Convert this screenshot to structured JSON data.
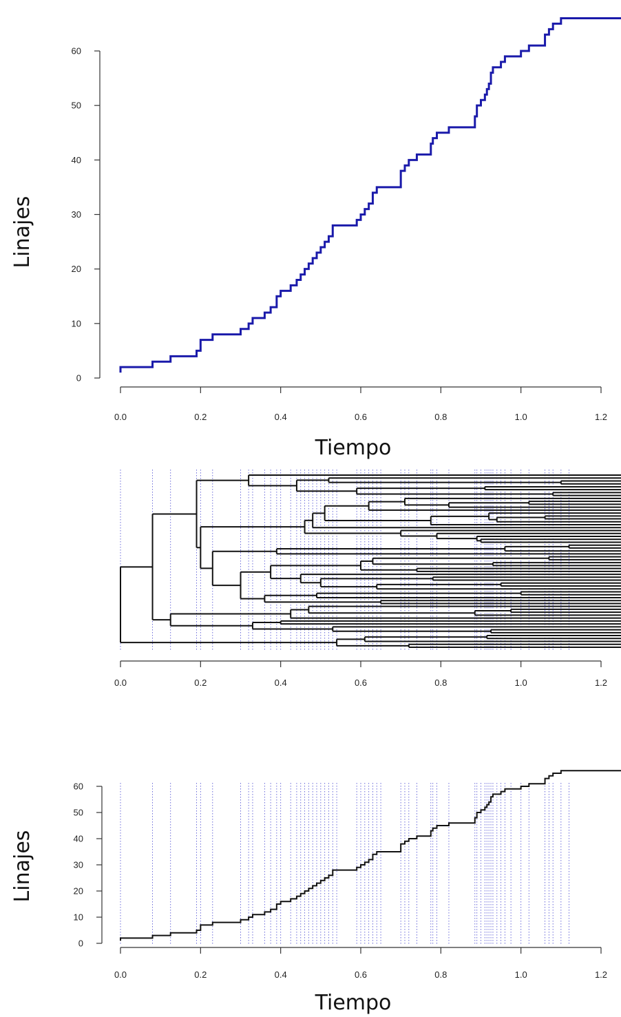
{
  "chart_data": [
    {
      "type": "line",
      "step": true,
      "color": "#1a1aaa",
      "xlabel": "Tiempo",
      "ylabel": "Linajes",
      "xlim": [
        0,
        1.2
      ],
      "ylim": [
        0,
        66
      ],
      "x_ticks": [
        "0.0",
        "0.2",
        "0.4",
        "0.6",
        "0.8",
        "1.0",
        "1.2"
      ],
      "y_ticks": [
        "0",
        "10",
        "20",
        "30",
        "40",
        "50",
        "60"
      ],
      "series": [
        {
          "x": [
            0,
            0.08,
            0.125,
            0.19,
            0.2,
            0.23,
            0.3,
            0.32,
            0.33,
            0.36,
            0.375,
            0.39,
            0.4,
            0.425,
            0.44,
            0.45,
            0.46,
            0.47,
            0.48,
            0.49,
            0.5,
            0.51,
            0.52,
            0.53,
            0.54,
            0.59,
            0.6,
            0.61,
            0.62,
            0.63,
            0.64,
            0.65,
            0.7,
            0.71,
            0.72,
            0.74,
            0.775,
            0.78,
            0.79,
            0.82,
            0.885,
            0.89,
            0.9,
            0.91,
            0.915,
            0.92,
            0.925,
            0.93,
            0.94,
            0.95,
            0.96,
            0.975,
            1.0,
            1.02,
            1.06,
            1.07,
            1.08,
            1.1,
            1.12,
            1.3
          ],
          "y": [
            2,
            3,
            4,
            5,
            7,
            8,
            9,
            10,
            11,
            12,
            13,
            15,
            16,
            17,
            18,
            19,
            20,
            21,
            22,
            23,
            24,
            25,
            26,
            28,
            28,
            29,
            30,
            31,
            32,
            34,
            35,
            35,
            38,
            39,
            40,
            41,
            43,
            44,
            45,
            46,
            48,
            50,
            51,
            52,
            53,
            54,
            56,
            57,
            57,
            58,
            59,
            59,
            60,
            61,
            63,
            64,
            65,
            66,
            66,
            66
          ]
        }
      ]
    },
    {
      "type": "tree",
      "xlim": [
        0,
        1.2
      ],
      "x_ticks": [
        "0.0",
        "0.2",
        "0.4",
        "0.6",
        "0.8",
        "1.0",
        "1.2"
      ],
      "tips": 66,
      "present_time": 1.25,
      "root_time": 0,
      "node_times": [
        0,
        0.08,
        0.125,
        0.19,
        0.2,
        0.23,
        0.3,
        0.32,
        0.33,
        0.36,
        0.375,
        0.39,
        0.4,
        0.425,
        0.44,
        0.45,
        0.46,
        0.47,
        0.48,
        0.49,
        0.5,
        0.51,
        0.52,
        0.53,
        0.54,
        0.59,
        0.6,
        0.61,
        0.62,
        0.63,
        0.64,
        0.65,
        0.7,
        0.71,
        0.72,
        0.74,
        0.775,
        0.78,
        0.79,
        0.82,
        0.885,
        0.89,
        0.9,
        0.91,
        0.915,
        0.92,
        0.925,
        0.93,
        0.94,
        0.95,
        0.96,
        0.975,
        1.0,
        1.02,
        1.06,
        1.07,
        1.08,
        1.1,
        1.12
      ]
    },
    {
      "type": "line",
      "step": true,
      "color": "#111111",
      "xlabel": "Tiempo",
      "ylabel": "Linajes",
      "xlim": [
        0,
        1.2
      ],
      "ylim": [
        0,
        66
      ],
      "x_ticks": [
        "0.0",
        "0.2",
        "0.4",
        "0.6",
        "0.8",
        "1.0",
        "1.2"
      ],
      "y_ticks": [
        "0",
        "10",
        "20",
        "30",
        "40",
        "50",
        "60"
      ],
      "guide_color": "#3333cc",
      "guide_lines_x": [
        0,
        0.08,
        0.125,
        0.19,
        0.2,
        0.23,
        0.3,
        0.32,
        0.33,
        0.36,
        0.375,
        0.39,
        0.4,
        0.425,
        0.44,
        0.45,
        0.46,
        0.47,
        0.48,
        0.49,
        0.5,
        0.51,
        0.52,
        0.53,
        0.54,
        0.59,
        0.6,
        0.61,
        0.62,
        0.63,
        0.64,
        0.65,
        0.7,
        0.71,
        0.72,
        0.74,
        0.775,
        0.78,
        0.79,
        0.82,
        0.885,
        0.89,
        0.9,
        0.91,
        0.915,
        0.92,
        0.925,
        0.93,
        0.94,
        0.95,
        0.96,
        0.975,
        1.0,
        1.02,
        1.06,
        1.07,
        1.08,
        1.1,
        1.12
      ],
      "series": [
        {
          "x": [
            0,
            0.08,
            0.125,
            0.19,
            0.2,
            0.23,
            0.3,
            0.32,
            0.33,
            0.36,
            0.375,
            0.39,
            0.4,
            0.425,
            0.44,
            0.45,
            0.46,
            0.47,
            0.48,
            0.49,
            0.5,
            0.51,
            0.52,
            0.53,
            0.54,
            0.59,
            0.6,
            0.61,
            0.62,
            0.63,
            0.64,
            0.65,
            0.7,
            0.71,
            0.72,
            0.74,
            0.775,
            0.78,
            0.79,
            0.82,
            0.885,
            0.89,
            0.9,
            0.91,
            0.915,
            0.92,
            0.925,
            0.93,
            0.94,
            0.95,
            0.96,
            0.975,
            1.0,
            1.02,
            1.06,
            1.07,
            1.08,
            1.1,
            1.12,
            1.3
          ],
          "y": [
            2,
            3,
            4,
            5,
            7,
            8,
            9,
            10,
            11,
            12,
            13,
            15,
            16,
            17,
            18,
            19,
            20,
            21,
            22,
            23,
            24,
            25,
            26,
            28,
            28,
            29,
            30,
            31,
            32,
            34,
            35,
            35,
            38,
            39,
            40,
            41,
            43,
            44,
            45,
            46,
            48,
            50,
            51,
            52,
            53,
            54,
            56,
            57,
            57,
            58,
            59,
            59,
            60,
            61,
            63,
            64,
            65,
            66,
            66,
            66
          ]
        }
      ]
    }
  ]
}
